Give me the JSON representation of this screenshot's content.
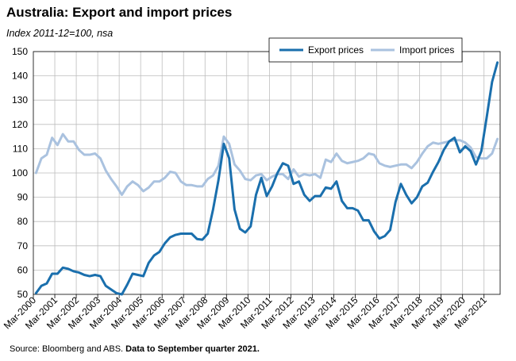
{
  "chart_data": {
    "type": "line",
    "title": "Australia: Export and import prices",
    "subtitle": "Index 2011-12=100,  nsa",
    "source_prefix": "Source: Bloomberg and ABS. ",
    "source_bold": "Data to September quarter 2021.",
    "ylim": [
      50,
      150
    ],
    "yticks": [
      50,
      60,
      70,
      80,
      90,
      100,
      110,
      120,
      130,
      140,
      150
    ],
    "x_tick_labels": [
      "Mar-2000",
      "Mar-2001",
      "Mar-2002",
      "Mar-2003",
      "Mar-2004",
      "Mar-2005",
      "Mar-2006",
      "Mar-2007",
      "Mar-2008",
      "Mar-2009",
      "Mar-2010",
      "Mar-2011",
      "Mar-2012",
      "Mar-2013",
      "Mar-2014",
      "Mar-2015",
      "Mar-2016",
      "Mar-2017",
      "Mar-2018",
      "Mar-2019",
      "Mar-2020",
      "Mar-2021"
    ],
    "x_start": "Mar-2000",
    "x_end": "Sep-2021",
    "grid": true,
    "legend_placement": "top-right",
    "series": [
      {
        "name": "Export prices",
        "color": "#1a6fad",
        "values": [
          50.5,
          53.5,
          54.5,
          58.5,
          58.5,
          61,
          60.5,
          59.5,
          59,
          58,
          57.5,
          58,
          57.5,
          53.5,
          52,
          50.5,
          50,
          54,
          58.5,
          58,
          57.5,
          63,
          66,
          67.5,
          71,
          73.5,
          74.5,
          75,
          75,
          75,
          72.8,
          72.5,
          75,
          85,
          97,
          112,
          106,
          85,
          77,
          75.5,
          78,
          91,
          98,
          90.5,
          94.5,
          100,
          104,
          103,
          95.5,
          96.5,
          91,
          88.5,
          90.5,
          90.5,
          94,
          93.5,
          96.5,
          88.5,
          85.5,
          85.5,
          84.5,
          80.5,
          80.5,
          76,
          73,
          74,
          76.5,
          88,
          95.5,
          91,
          87.5,
          90,
          94.5,
          96,
          100.5,
          104.5,
          109.5,
          113,
          114.5,
          108.5,
          111,
          109,
          103.5,
          109,
          123,
          137.5,
          145.5
        ]
      },
      {
        "name": "Import prices",
        "color": "#aac2df",
        "values": [
          100,
          106,
          107.5,
          114.5,
          111.5,
          116,
          113,
          113,
          109.5,
          107.5,
          107.5,
          108,
          106,
          101,
          97.5,
          94.5,
          91,
          94.5,
          96.5,
          95,
          92.5,
          94,
          96.5,
          96.5,
          98,
          100.5,
          100,
          96.5,
          95,
          95,
          94.5,
          94.5,
          97.5,
          99,
          103,
          115,
          112,
          103.5,
          101,
          97.5,
          97,
          99,
          99.5,
          97,
          98.5,
          99.5,
          99.5,
          97.5,
          101.5,
          98.5,
          99.5,
          99,
          99.5,
          98,
          105.5,
          104.5,
          108,
          105,
          104,
          104.5,
          105,
          106,
          108,
          107.5,
          104,
          103,
          102.5,
          103,
          103.5,
          103.5,
          102,
          104.5,
          108,
          111,
          112.5,
          112,
          112.5,
          113,
          113.5,
          113.5,
          112.5,
          110.5,
          106.5,
          106,
          106,
          108,
          114
        ]
      }
    ]
  }
}
